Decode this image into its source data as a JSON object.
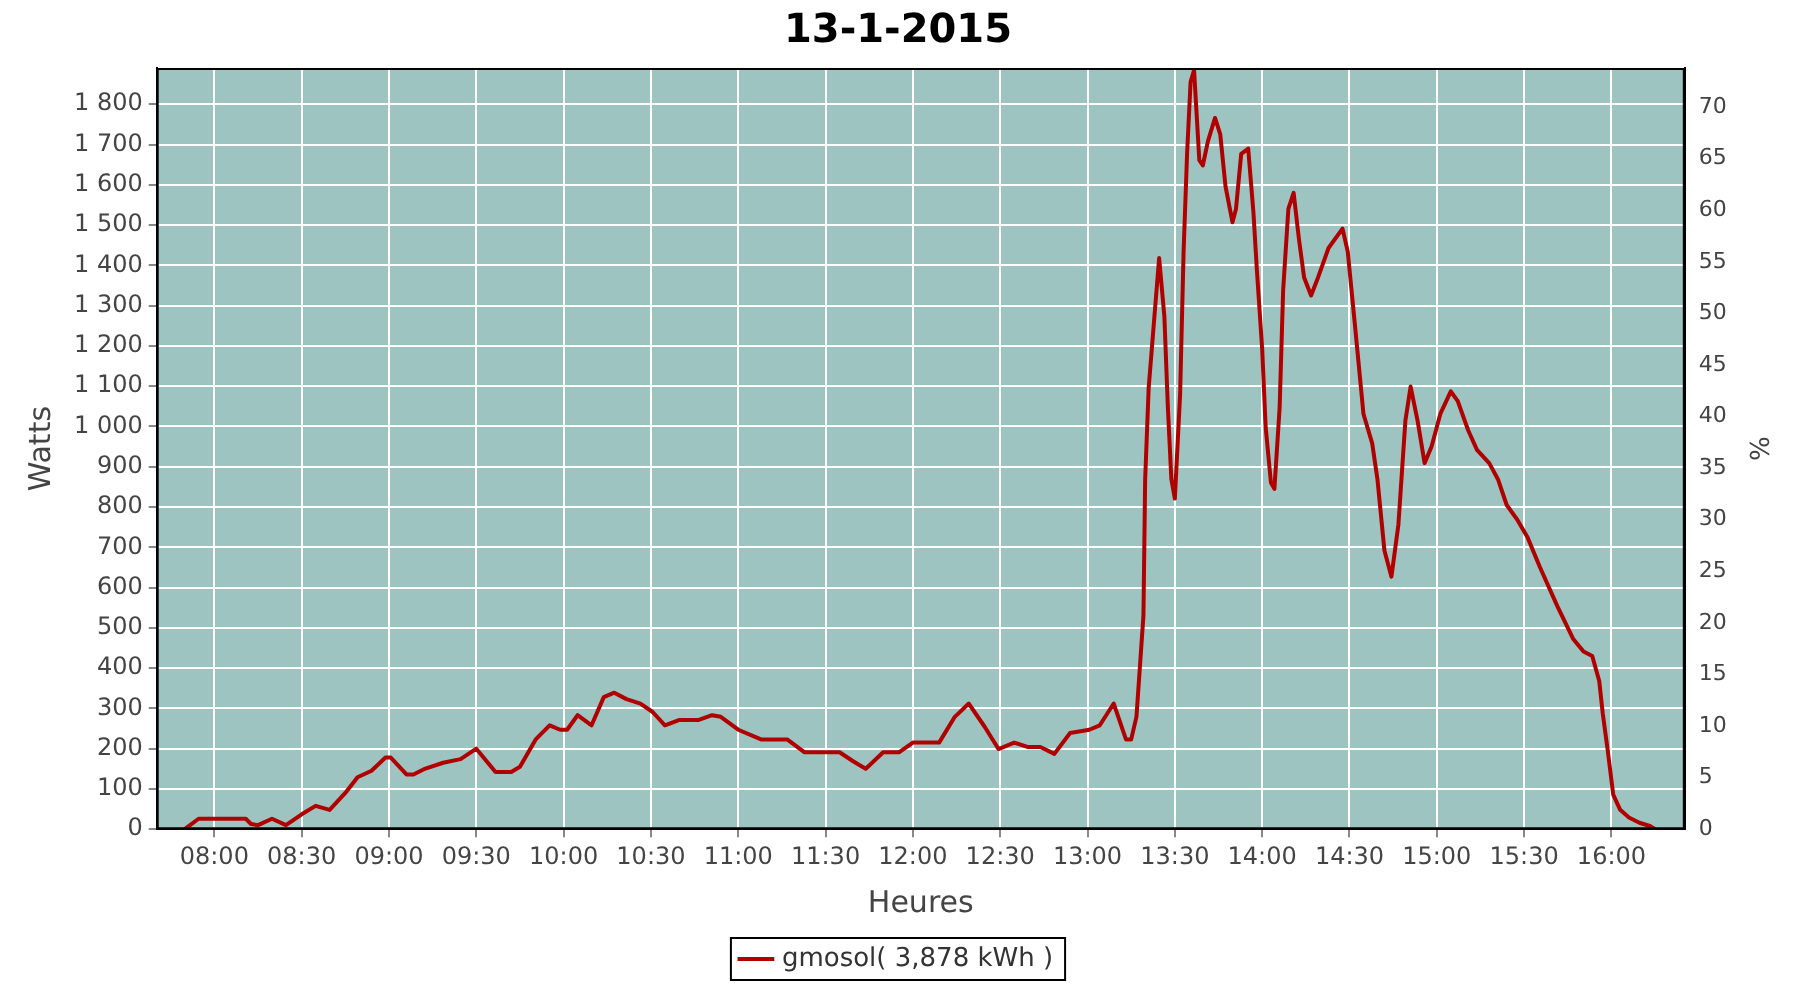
{
  "chart_data": {
    "type": "line",
    "title": "13-1-2015",
    "xlabel": "Heures",
    "ylabel": "Watts",
    "y2label": "%",
    "xlim": [
      7.67,
      16.42
    ],
    "xticks": [
      {
        "value": 8,
        "label": "08:00"
      },
      {
        "value": 8.5,
        "label": "08:30"
      },
      {
        "value": 9,
        "label": "09:00"
      },
      {
        "value": 9.5,
        "label": "09:30"
      },
      {
        "value": 10,
        "label": "10:00"
      },
      {
        "value": 10.5,
        "label": "10:30"
      },
      {
        "value": 11,
        "label": "11:00"
      },
      {
        "value": 11.5,
        "label": "11:30"
      },
      {
        "value": 12,
        "label": "12:00"
      },
      {
        "value": 12.5,
        "label": "12:30"
      },
      {
        "value": 13,
        "label": "13:00"
      },
      {
        "value": 13.5,
        "label": "13:30"
      },
      {
        "value": 14,
        "label": "14:00"
      },
      {
        "value": 14.5,
        "label": "14:30"
      },
      {
        "value": 15,
        "label": "15:00"
      },
      {
        "value": 15.5,
        "label": "15:30"
      },
      {
        "value": 16,
        "label": "16:00"
      }
    ],
    "ylim": [
      0,
      1890
    ],
    "yticks": [
      0,
      100,
      200,
      300,
      400,
      500,
      600,
      700,
      800,
      900,
      {
        "value": 1000,
        "label": "1 000"
      },
      {
        "value": 1100,
        "label": "1 100"
      },
      {
        "value": 1200,
        "label": "1 200"
      },
      {
        "value": 1300,
        "label": "1 300"
      },
      {
        "value": 1400,
        "label": "1 400"
      },
      {
        "value": 1500,
        "label": "1 500"
      },
      {
        "value": 1600,
        "label": "1 600"
      },
      {
        "value": 1700,
        "label": "1 700"
      },
      {
        "value": 1800,
        "label": "1 800"
      }
    ],
    "y2lim": [
      0,
      73.8
    ],
    "y2ticks": [
      0,
      5,
      10,
      15,
      20,
      25,
      30,
      35,
      40,
      45,
      50,
      55,
      60,
      65,
      70
    ],
    "grid": true,
    "legend": "bottom",
    "marker": "none",
    "line_style": "solid",
    "series": [
      {
        "name": "gmosol( 3,878 kWh )",
        "color": "#b00000",
        "x": [
          7.83,
          7.91,
          8.18,
          8.21,
          8.25,
          8.33,
          8.41,
          8.5,
          8.58,
          8.66,
          8.75,
          8.82,
          8.9,
          8.98,
          9.01,
          9.1,
          9.14,
          9.2,
          9.31,
          9.41,
          9.5,
          9.61,
          9.7,
          9.75,
          9.84,
          9.92,
          9.98,
          10.02,
          10.08,
          10.16,
          10.23,
          10.29,
          10.36,
          10.44,
          10.51,
          10.58,
          10.66,
          10.77,
          10.85,
          10.9,
          11.0,
          11.13,
          11.28,
          11.38,
          11.58,
          11.66,
          11.73,
          11.83,
          11.92,
          12.0,
          12.15,
          12.24,
          12.32,
          12.41,
          12.49,
          12.58,
          12.66,
          12.73,
          12.81,
          12.9,
          13.01,
          13.07,
          13.15,
          13.22,
          13.25,
          13.28,
          13.32,
          13.33,
          13.35,
          13.38,
          13.41,
          13.44,
          13.46,
          13.48,
          13.5,
          13.53,
          13.55,
          13.57,
          13.59,
          13.61,
          13.64,
          13.66,
          13.69,
          13.73,
          13.76,
          13.79,
          13.83,
          13.85,
          13.88,
          13.92,
          13.95,
          13.97,
          14.0,
          14.02,
          14.05,
          14.07,
          14.1,
          14.12,
          14.15,
          14.18,
          14.21,
          14.24,
          14.28,
          14.32,
          14.38,
          14.46,
          14.49,
          14.53,
          14.58,
          14.63,
          14.66,
          14.7,
          14.74,
          14.78,
          14.82,
          14.85,
          14.89,
          14.93,
          14.97,
          15.02,
          15.08,
          15.12,
          15.18,
          15.23,
          15.3,
          15.35,
          15.4,
          15.46,
          15.52,
          15.59,
          15.69,
          15.78,
          15.84,
          15.89,
          15.93,
          15.95,
          15.98,
          16.01,
          16.05,
          16.1,
          16.16,
          16.22,
          16.25
        ],
        "values": [
          0,
          26,
          26,
          13,
          10,
          26,
          10,
          37,
          58,
          48,
          90,
          129,
          145,
          178,
          178,
          136,
          136,
          149,
          165,
          174,
          200,
          142,
          142,
          155,
          223,
          258,
          247,
          247,
          283,
          258,
          328,
          339,
          323,
          312,
          291,
          258,
          271,
          271,
          283,
          279,
          247,
          223,
          223,
          191,
          191,
          168,
          150,
          191,
          191,
          215,
          215,
          279,
          312,
          255,
          199,
          215,
          204,
          204,
          187,
          239,
          247,
          258,
          312,
          223,
          223,
          279,
          530,
          869,
          1095,
          1257,
          1418,
          1273,
          1047,
          869,
          821,
          1079,
          1434,
          1677,
          1855,
          1885,
          1661,
          1648,
          1709,
          1766,
          1725,
          1596,
          1507,
          1540,
          1677,
          1690,
          1531,
          1386,
          1192,
          998,
          861,
          845,
          1047,
          1338,
          1540,
          1580,
          1467,
          1370,
          1325,
          1370,
          1443,
          1491,
          1434,
          1257,
          1031,
          958,
          869,
          692,
          627,
          756,
          1014,
          1099,
          1014,
          909,
          950,
          1031,
          1087,
          1063,
          990,
          942,
          909,
          869,
          805,
          769,
          724,
          651,
          554,
          473,
          441,
          430,
          368,
          288,
          191,
          86,
          48,
          29,
          16,
          8,
          0
        ]
      }
    ]
  }
}
